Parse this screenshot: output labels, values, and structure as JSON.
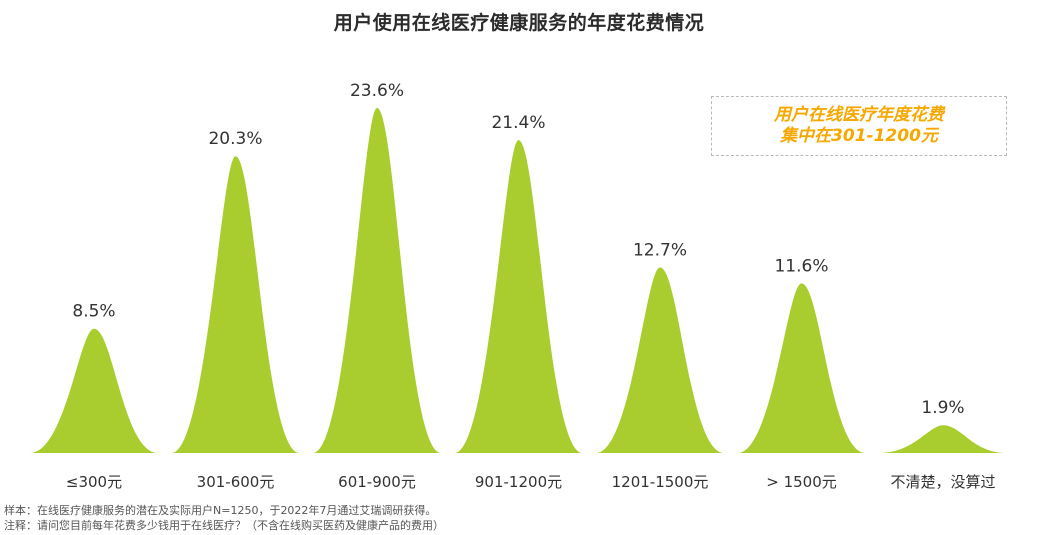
{
  "title": "用户使用在线医疗健康服务的年度花费情况",
  "callout": {
    "line1": "用户在线医疗年度花费",
    "line2": "集中在301-1200元"
  },
  "footnotes": {
    "sample": "样本：在线医疗健康服务的潜在及实际用户N=1250，于2022年7月通过艾瑞调研获得。",
    "note": "注释：请问您目前每年花费多少钱用于在线医疗？（不含在线购买医药及健康产品的费用）"
  },
  "colors": {
    "bar": "#a9cd2f",
    "title": "#2b2b2b",
    "callout": "#f6a800",
    "label": "#333333"
  },
  "chart_data": {
    "type": "bar",
    "style": "bell-shaped bars",
    "categories": [
      "≤300元",
      "301-600元",
      "601-900元",
      "901-1200元",
      "1201-1500元",
      "> 1500元",
      "不清楚，没算过"
    ],
    "values": [
      8.5,
      20.3,
      23.6,
      21.4,
      12.7,
      11.6,
      1.9
    ],
    "value_labels": [
      "8.5%",
      "20.3%",
      "23.6%",
      "21.4%",
      "12.7%",
      "11.6%",
      "1.9%"
    ],
    "title": "用户使用在线医疗健康服务的年度花费情况",
    "unit": "%",
    "ylim": [
      0,
      25
    ],
    "grid": false,
    "legend": "none"
  }
}
